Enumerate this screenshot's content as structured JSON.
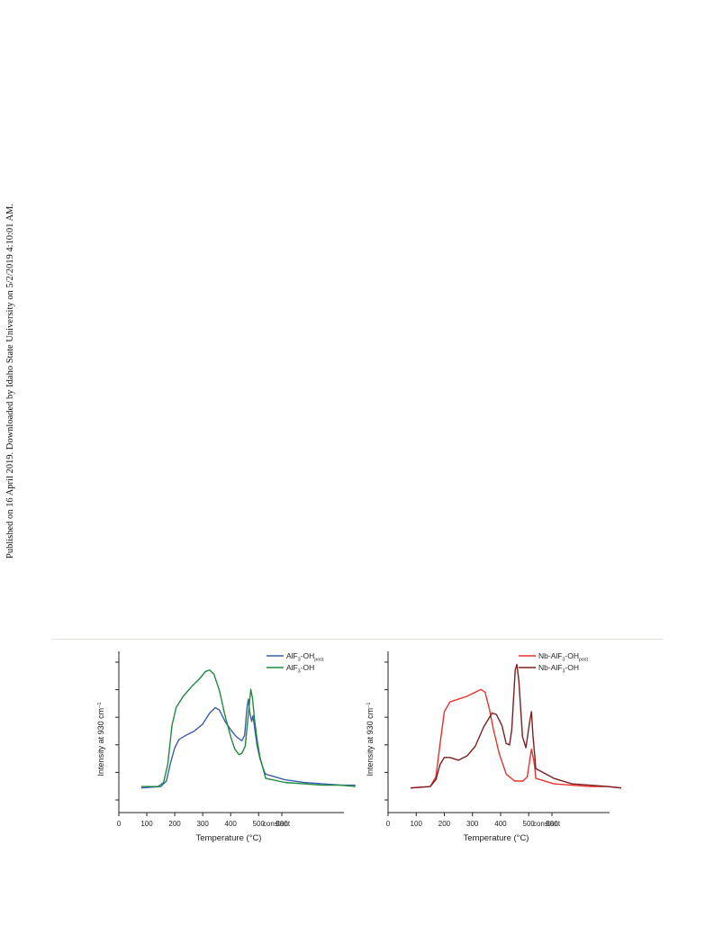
{
  "side_note": "Published on 16 April 2019. Downloaded by Idaho State University on 5/2/2019 4:10:01 AM.",
  "chart_data": [
    {
      "type": "line",
      "ylabel": "Intensity at 930 cm",
      "ylabel_sup": "−1",
      "xlabel": "Temperature (°C)",
      "xticks": [
        "0",
        "100",
        "200",
        "300",
        "400",
        "500",
        "constant",
        "500"
      ],
      "x_segments": [
        {
          "name": "heating",
          "xlim": [
            0,
            525
          ]
        },
        {
          "name": "constant",
          "xlim": [
            500,
            600
          ],
          "tick_values": [
            500
          ]
        }
      ],
      "y_ticks_unlabeled": true,
      "ylim": [
        0,
        1
      ],
      "series": [
        {
          "name": "AlF",
          "name_sub": "3",
          "name_tail": "-OH",
          "name_post": "post",
          "color": "#3c5eb0",
          "points": [
            [
              80,
              0.08
            ],
            [
              150,
              0.09
            ],
            [
              170,
              0.13
            ],
            [
              185,
              0.26
            ],
            [
              200,
              0.37
            ],
            [
              215,
              0.43
            ],
            [
              240,
              0.46
            ],
            [
              270,
              0.49
            ],
            [
              300,
              0.54
            ],
            [
              325,
              0.62
            ],
            [
              345,
              0.66
            ],
            [
              360,
              0.64
            ],
            [
              380,
              0.56
            ],
            [
              400,
              0.5
            ],
            [
              420,
              0.45
            ],
            [
              440,
              0.42
            ],
            [
              450,
              0.46
            ],
            [
              458,
              0.65
            ],
            [
              463,
              0.72
            ],
            [
              468,
              0.63
            ],
            [
              475,
              0.56
            ],
            [
              480,
              0.6
            ],
            [
              488,
              0.48
            ],
            [
              495,
              0.38
            ],
            [
              505,
              0.29
            ],
            [
              520,
              0.2
            ]
          ],
          "constant_points": [
            [
              500,
              0.18
            ],
            [
              520,
              0.14
            ],
            [
              540,
              0.12
            ],
            [
              560,
              0.11
            ],
            [
              580,
              0.1
            ],
            [
              595,
              0.1
            ]
          ]
        },
        {
          "name": "AlF",
          "name_sub": "3",
          "name_tail": "-OH",
          "name_post": "",
          "color": "#1f8a3c",
          "points": [
            [
              80,
              0.09
            ],
            [
              140,
              0.09
            ],
            [
              160,
              0.12
            ],
            [
              175,
              0.25
            ],
            [
              190,
              0.53
            ],
            [
              205,
              0.66
            ],
            [
              230,
              0.74
            ],
            [
              260,
              0.81
            ],
            [
              290,
              0.87
            ],
            [
              310,
              0.92
            ],
            [
              325,
              0.93
            ],
            [
              340,
              0.9
            ],
            [
              360,
              0.78
            ],
            [
              380,
              0.6
            ],
            [
              400,
              0.45
            ],
            [
              415,
              0.36
            ],
            [
              430,
              0.32
            ],
            [
              440,
              0.33
            ],
            [
              452,
              0.38
            ],
            [
              462,
              0.58
            ],
            [
              472,
              0.79
            ],
            [
              478,
              0.73
            ],
            [
              485,
              0.58
            ],
            [
              495,
              0.42
            ],
            [
              505,
              0.3
            ],
            [
              520,
              0.19
            ]
          ],
          "constant_points": [
            [
              500,
              0.15
            ],
            [
              520,
              0.12
            ],
            [
              540,
              0.11
            ],
            [
              560,
              0.1
            ],
            [
              580,
              0.1
            ],
            [
              595,
              0.09
            ]
          ]
        }
      ]
    },
    {
      "type": "line",
      "ylabel": "Intensity at 930 cm",
      "ylabel_sup": "−1",
      "xlabel": "Temperature (°C)",
      "xticks": [
        "0",
        "100",
        "200",
        "300",
        "400",
        "500",
        "constant",
        "500"
      ],
      "x_segments": [
        {
          "name": "heating",
          "xlim": [
            0,
            525
          ]
        },
        {
          "name": "constant",
          "xlim": [
            500,
            600
          ],
          "tick_values": [
            500
          ]
        }
      ],
      "y_ticks_unlabeled": true,
      "ylim": [
        0,
        1
      ],
      "series": [
        {
          "name": "Nb-AlF",
          "name_sub": "3",
          "name_tail": "-OH",
          "name_post": "post",
          "color": "#e8312b",
          "points": [
            [
              80,
              0.08
            ],
            [
              150,
              0.09
            ],
            [
              170,
              0.16
            ],
            [
              185,
              0.4
            ],
            [
              200,
              0.63
            ],
            [
              220,
              0.7
            ],
            [
              250,
              0.72
            ],
            [
              280,
              0.74
            ],
            [
              310,
              0.77
            ],
            [
              330,
              0.79
            ],
            [
              345,
              0.77
            ],
            [
              360,
              0.65
            ],
            [
              375,
              0.5
            ],
            [
              395,
              0.33
            ],
            [
              420,
              0.18
            ],
            [
              450,
              0.13
            ],
            [
              480,
              0.13
            ],
            [
              495,
              0.16
            ],
            [
              505,
              0.3
            ],
            [
              510,
              0.36
            ],
            [
              518,
              0.28
            ],
            [
              522,
              0.22
            ]
          ],
          "constant_points": [
            [
              500,
              0.15
            ],
            [
              520,
              0.11
            ],
            [
              540,
              0.1
            ],
            [
              560,
              0.09
            ],
            [
              580,
              0.09
            ],
            [
              595,
              0.08
            ]
          ]
        },
        {
          "name": "Nb-AlF",
          "name_sub": "3",
          "name_tail": "-OH",
          "name_post": "",
          "color": "#7a1f1f",
          "points": [
            [
              80,
              0.08
            ],
            [
              150,
              0.09
            ],
            [
              170,
              0.14
            ],
            [
              185,
              0.25
            ],
            [
              200,
              0.3
            ],
            [
              220,
              0.3
            ],
            [
              250,
              0.28
            ],
            [
              280,
              0.31
            ],
            [
              310,
              0.38
            ],
            [
              340,
              0.52
            ],
            [
              370,
              0.62
            ],
            [
              385,
              0.61
            ],
            [
              405,
              0.53
            ],
            [
              420,
              0.4
            ],
            [
              432,
              0.39
            ],
            [
              440,
              0.5
            ],
            [
              452,
              0.93
            ],
            [
              458,
              0.97
            ],
            [
              465,
              0.85
            ],
            [
              478,
              0.45
            ],
            [
              490,
              0.37
            ],
            [
              505,
              0.58
            ],
            [
              510,
              0.63
            ],
            [
              515,
              0.46
            ],
            [
              522,
              0.3
            ]
          ],
          "constant_points": [
            [
              500,
              0.22
            ],
            [
              520,
              0.15
            ],
            [
              540,
              0.11
            ],
            [
              560,
              0.1
            ],
            [
              580,
              0.09
            ],
            [
              595,
              0.08
            ]
          ]
        }
      ]
    }
  ]
}
